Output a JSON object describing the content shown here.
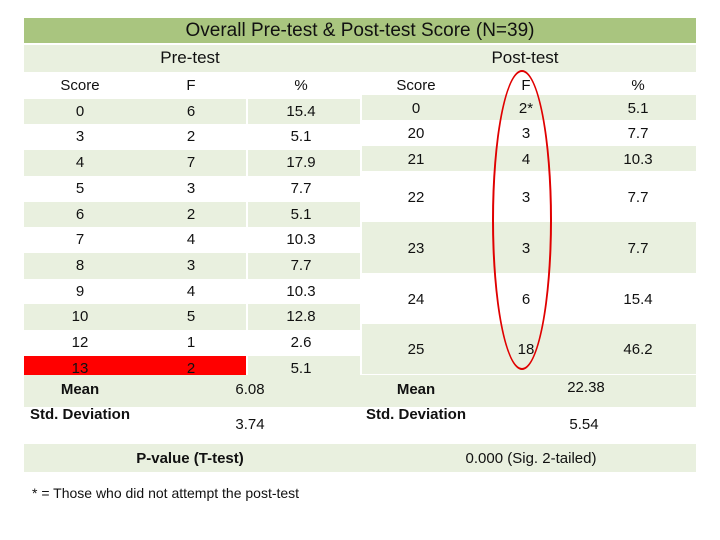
{
  "title": "Overall Pre-test & Post-test Score (N=39)",
  "pre_label": "Pre-test",
  "post_label": "Post-test",
  "pre": {
    "headers": [
      "Score",
      "F",
      "%"
    ],
    "rows": [
      [
        "0",
        "6",
        "15.4"
      ],
      [
        "3",
        "2",
        "5.1"
      ],
      [
        "4",
        "7",
        "17.9"
      ],
      [
        "5",
        "3",
        "7.7"
      ],
      [
        "6",
        "2",
        "5.1"
      ],
      [
        "7",
        "4",
        "10.3"
      ],
      [
        "8",
        "3",
        "7.7"
      ],
      [
        "9",
        "4",
        "10.3"
      ],
      [
        "10",
        "5",
        "12.8"
      ],
      [
        "12",
        "1",
        "2.6"
      ],
      [
        "13",
        "2",
        "5.1"
      ]
    ],
    "highlighted_row": "13",
    "highlight_color": "#ff0000",
    "mean_label": "Mean",
    "mean_value": "6.08",
    "sd_label": "Std. Deviation",
    "sd_value": "3.74"
  },
  "post": {
    "headers": [
      "Score",
      "F",
      "%"
    ],
    "rows": [
      [
        "0",
        "2*",
        "5.1"
      ],
      [
        "20",
        "3",
        "7.7"
      ],
      [
        "21",
        "4",
        "10.3"
      ],
      [
        "22",
        "3",
        "7.7"
      ],
      [
        "23",
        "3",
        "7.7"
      ],
      [
        "24",
        "6",
        "15.4"
      ],
      [
        "25",
        "18",
        "46.2"
      ]
    ],
    "mean_label": "Mean",
    "mean_value": "22.38",
    "sd_label": "Std. Deviation",
    "sd_value": "5.54"
  },
  "pvalue_label": "P-value (T-test)",
  "pvalue_value": "0.000 (Sig. 2-tailed)",
  "footnote": "* = Those who did not attempt the post-test",
  "colors": {
    "title_band": "#a9c57f",
    "light_band": "#e9f0df",
    "circle": "#e00000"
  }
}
